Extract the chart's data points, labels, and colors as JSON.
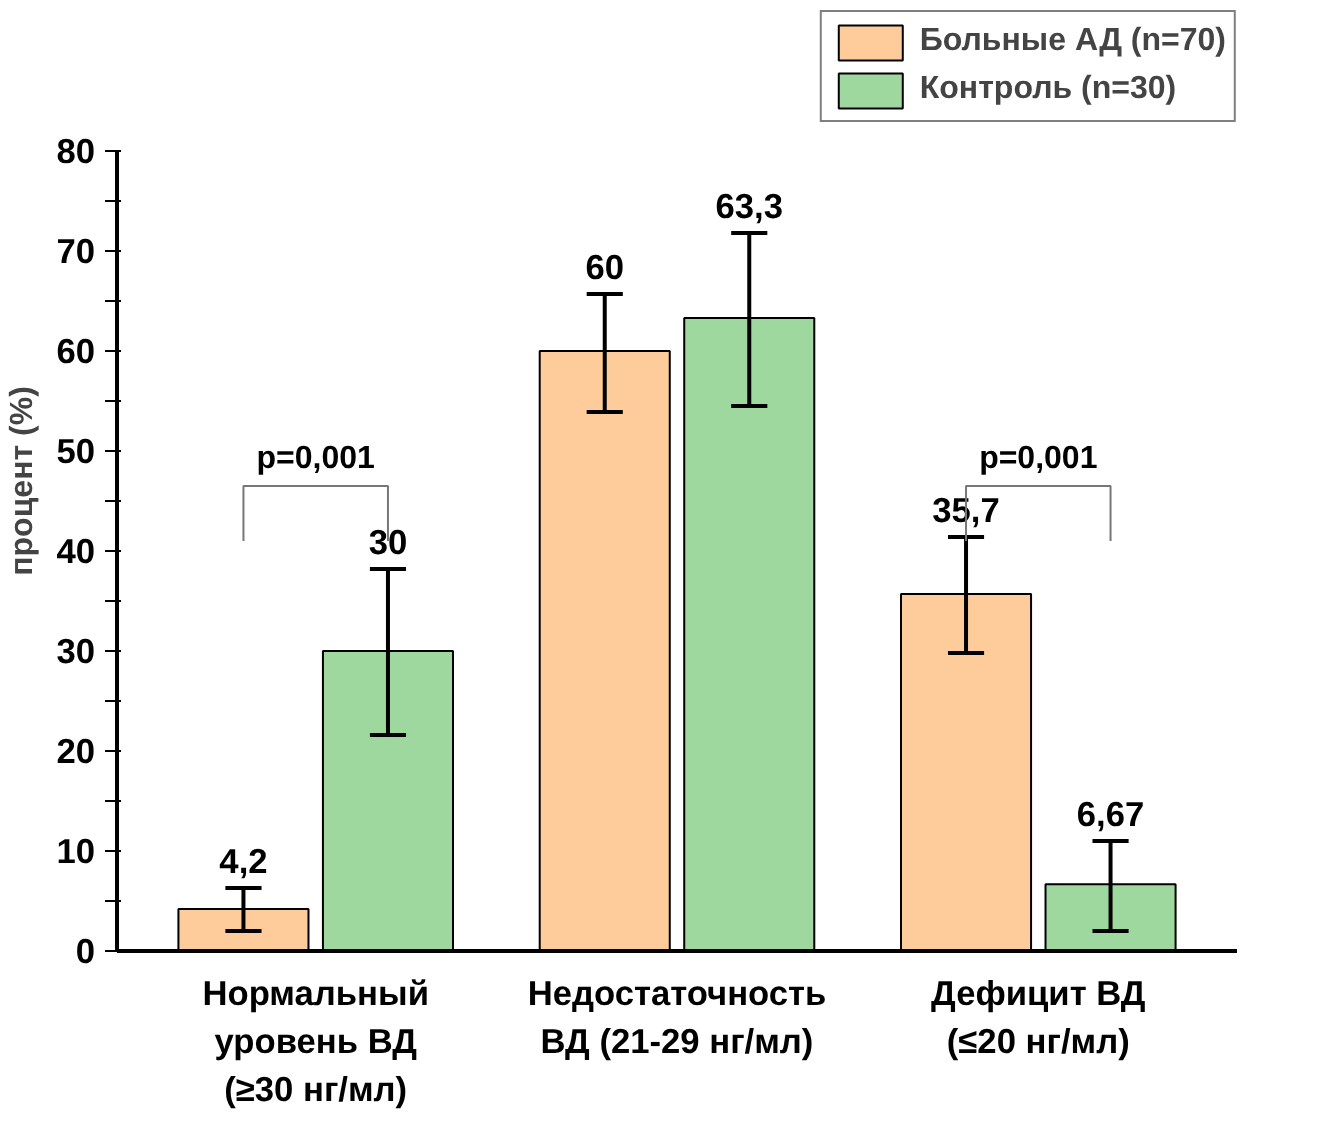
{
  "chart_data": {
    "type": "bar",
    "ylabel": "процент (%)",
    "categories": [
      "Нормальный\nуровень ВД\n(≥30 нг/мл)",
      "Недостаточность\nВД (21-29 нг/мл)",
      "Дефицит ВД\n(≤20 нг/мл)"
    ],
    "series": [
      {
        "name": "Больные АД (n=70)",
        "color": "#fdcc9a",
        "values": [
          4.2,
          60,
          35.7
        ],
        "value_labels": [
          "4,2",
          "60",
          "35,7"
        ],
        "errors": [
          [
            2.0,
            6.3
          ],
          [
            53.9,
            65.7
          ],
          [
            29.8,
            41.4
          ]
        ]
      },
      {
        "name": "Контроль (n=30)",
        "color": "#9ed89e",
        "values": [
          30,
          63.3,
          6.67
        ],
        "value_labels": [
          "30",
          "63,3",
          "6,67"
        ],
        "errors": [
          [
            21.6,
            38.2
          ],
          [
            54.5,
            71.8
          ],
          [
            2.0,
            11.0
          ]
        ]
      }
    ],
    "ylim": [
      0,
      80
    ],
    "yticks": [
      0,
      {
        "value": 5,
        "label": null
      },
      10,
      {
        "value": 15,
        "label": null
      },
      20,
      {
        "value": 25,
        "label": null
      },
      30,
      {
        "value": 35,
        "label": null
      },
      40,
      {
        "value": 45,
        "label": null
      },
      50,
      {
        "value": 55,
        "label": null
      },
      60,
      {
        "value": 65,
        "label": null
      },
      70,
      {
        "value": 75,
        "label": null
      },
      80
    ],
    "annotations": [
      "p=0,001",
      "p=0,001"
    ],
    "grid": false,
    "legend": "top right"
  }
}
